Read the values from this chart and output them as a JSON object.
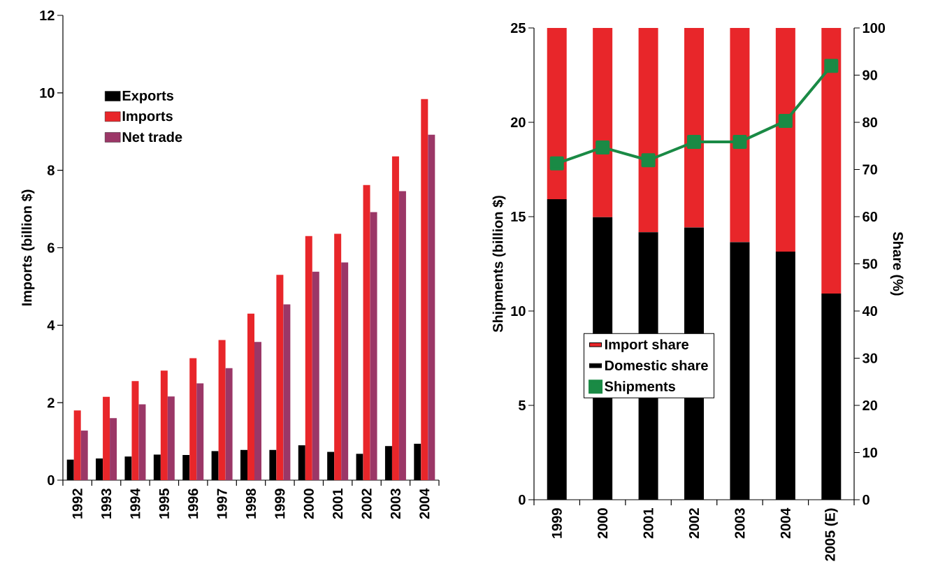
{
  "chart_data": [
    {
      "type": "bar",
      "ylabel": "Imports (billion $)",
      "categories": [
        "1992",
        "1993",
        "1994",
        "1995",
        "1996",
        "1997",
        "1998",
        "1999",
        "2000",
        "2001",
        "2002",
        "2003",
        "2004"
      ],
      "series": [
        {
          "name": "Exports",
          "color": "#000000",
          "values": [
            0.53,
            0.56,
            0.61,
            0.66,
            0.65,
            0.75,
            0.78,
            0.78,
            0.9,
            0.73,
            0.68,
            0.88,
            0.94
          ]
        },
        {
          "name": "Imports",
          "color": "#e8262a",
          "values": [
            1.8,
            2.15,
            2.56,
            2.83,
            3.15,
            3.62,
            4.3,
            5.3,
            6.3,
            6.36,
            7.62,
            8.36,
            9.84
          ]
        },
        {
          "name": "Net trade",
          "color": "#9b3767",
          "values": [
            1.28,
            1.6,
            1.96,
            2.16,
            2.5,
            2.89,
            3.57,
            4.54,
            5.38,
            5.62,
            6.92,
            7.46,
            8.92
          ]
        }
      ],
      "ylim": [
        0,
        12
      ],
      "yticks": [
        0,
        2,
        4,
        6,
        8,
        10,
        12
      ],
      "legend": "top left"
    },
    {
      "type": "bar",
      "ylabel": "Shipments (billion $)",
      "y2label": "Share (%)",
      "categories": [
        "1999",
        "2000",
        "2001",
        "2002",
        "2003",
        "2004",
        "2005 (E)"
      ],
      "stacked": true,
      "series": [
        {
          "name": "Domestic share",
          "color": "#000000",
          "axis": "y2",
          "values": [
            63.7,
            59.9,
            56.7,
            57.7,
            54.6,
            52.6,
            43.7
          ]
        },
        {
          "name": "Import share",
          "color": "#e8262a",
          "axis": "y2",
          "values": [
            36.3,
            40.1,
            43.3,
            42.3,
            45.4,
            47.4,
            56.3
          ]
        },
        {
          "name": "Shipments",
          "type": "line",
          "color": "#1a8a45",
          "values": [
            17.82,
            18.67,
            17.99,
            18.96,
            18.96,
            20.07,
            22.99
          ]
        }
      ],
      "ylim": [
        0,
        25
      ],
      "yticks": [
        0,
        5,
        10,
        15,
        20,
        25
      ],
      "y2lim": [
        0,
        100
      ],
      "y2ticks": [
        0,
        10,
        20,
        30,
        40,
        50,
        60,
        70,
        80,
        90,
        100
      ],
      "marker": "square",
      "legend": "bottom"
    }
  ]
}
